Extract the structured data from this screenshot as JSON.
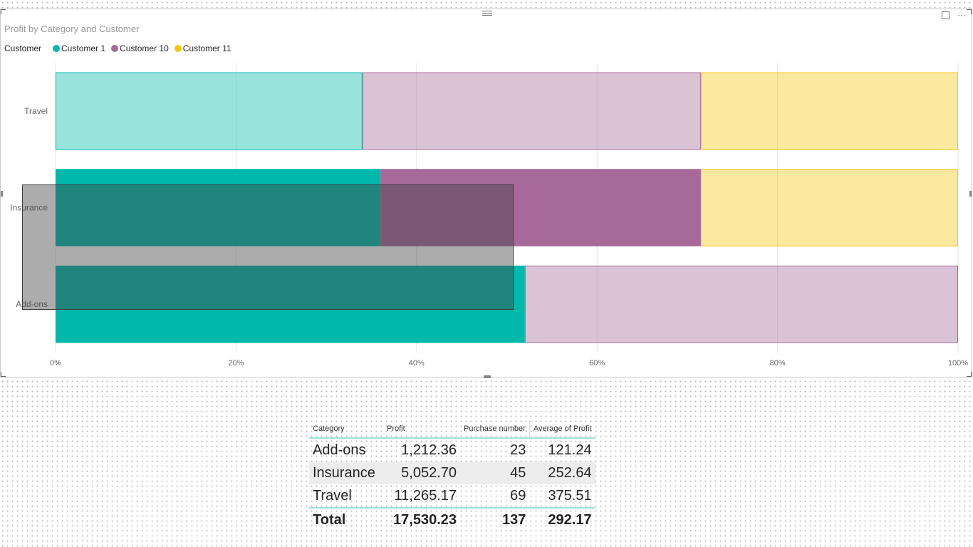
{
  "visual": {
    "title": "Profit by Category and Customer",
    "legend_title": "Customer",
    "header_icons": [
      "focus-mode-icon",
      "more-options-icon"
    ],
    "more_options_glyph": "···"
  },
  "chart_data": {
    "type": "bar",
    "orientation": "horizontal",
    "stacking": "100%",
    "title": "Profit by Category and Customer",
    "xlabel": "",
    "ylabel": "",
    "xlim": [
      0,
      100
    ],
    "x_ticks": [
      "0%",
      "20%",
      "40%",
      "60%",
      "80%",
      "100%"
    ],
    "categories": [
      "Travel",
      "Insurance",
      "Add-ons"
    ],
    "legend_position": "top-left",
    "series": [
      {
        "name": "Customer 1",
        "color": "#01B8AA",
        "values": [
          34,
          36,
          52
        ],
        "highlighted": [
          false,
          true,
          true
        ]
      },
      {
        "name": "Customer 10",
        "color": "#A66999",
        "values": [
          37.5,
          35.5,
          48
        ],
        "highlighted": [
          false,
          true,
          false
        ]
      },
      {
        "name": "Customer 11",
        "color": "#F2C80F",
        "values": [
          28.5,
          28.5,
          0
        ],
        "highlighted": [
          false,
          false,
          false
        ]
      }
    ]
  },
  "table": {
    "columns": [
      "Category",
      "Profit",
      "Purchase number",
      "Average of Profit"
    ],
    "rows": [
      [
        "Add-ons",
        "1,212.36",
        "23",
        "121.24"
      ],
      [
        "Insurance",
        "5,052.70",
        "45",
        "252.64"
      ],
      [
        "Travel",
        "11,265.17",
        "69",
        "375.51"
      ]
    ],
    "total": [
      "Total",
      "17,530.23",
      "137",
      "292.17"
    ]
  }
}
